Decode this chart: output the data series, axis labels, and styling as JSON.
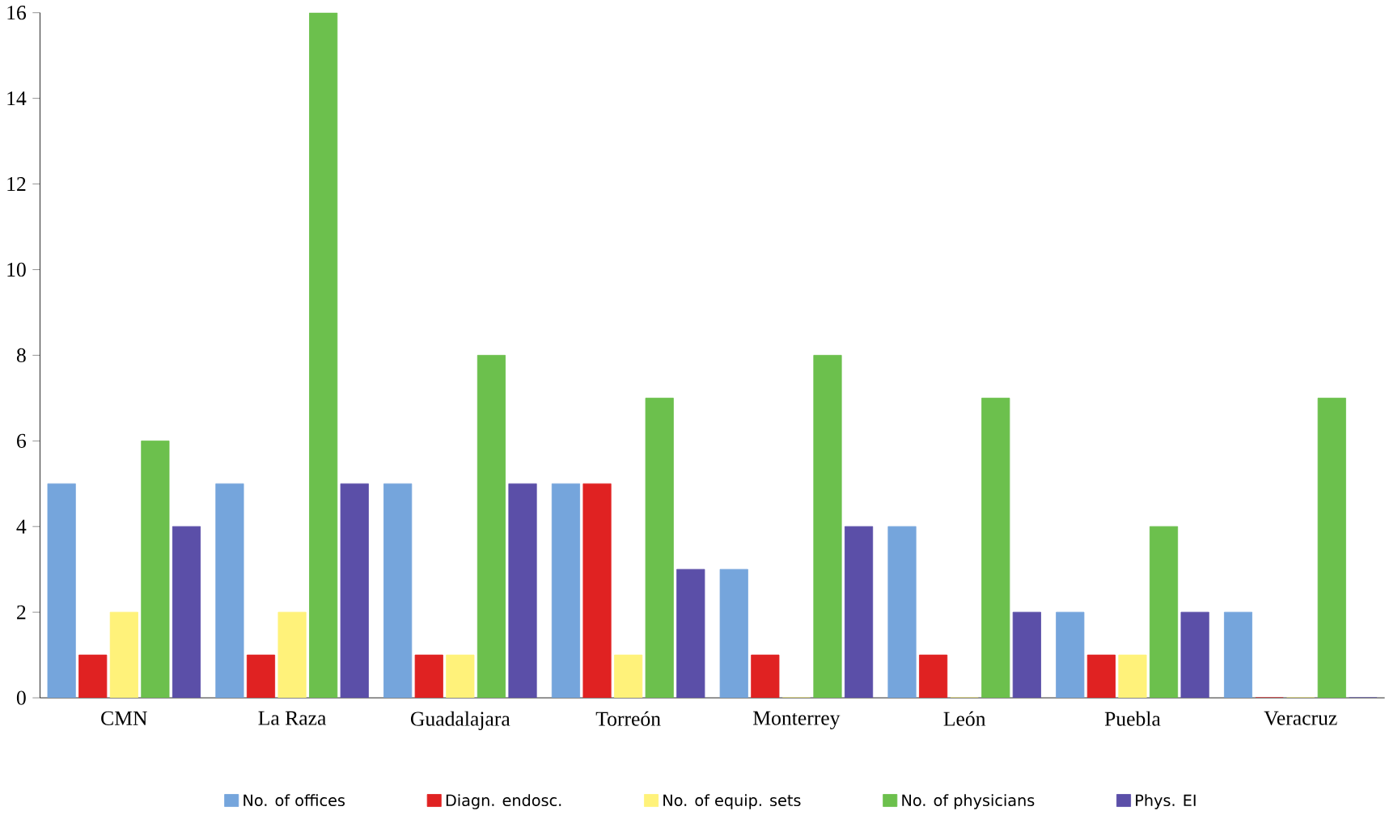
{
  "chart_data": {
    "type": "bar",
    "categories": [
      "CMN",
      "La Raza",
      "Guadalajara",
      "Torreón",
      "Monterrey",
      "León",
      "Puebla",
      "Veracruz"
    ],
    "series": [
      {
        "name": "No. of offices",
        "color": "#75a5dc",
        "values": [
          5,
          5,
          5,
          5,
          3,
          4,
          2,
          2
        ]
      },
      {
        "name": "Diagn. endosc.",
        "color": "#e02222",
        "values": [
          1,
          1,
          1,
          5,
          1,
          1,
          1,
          0
        ]
      },
      {
        "name": "No. of equip. sets",
        "color": "#fff27a",
        "values": [
          2,
          2,
          1,
          1,
          0,
          0,
          1,
          0
        ]
      },
      {
        "name": "No. of physicians",
        "color": "#6cc04d",
        "values": [
          6,
          16,
          8,
          7,
          8,
          7,
          4,
          7
        ]
      },
      {
        "name": "Phys. EI",
        "color": "#5b4fa8",
        "values": [
          4,
          5,
          5,
          3,
          4,
          2,
          2,
          0
        ]
      }
    ],
    "ylim": [
      0,
      16
    ],
    "yticks": [
      0,
      2,
      4,
      6,
      8,
      10,
      12,
      14,
      16
    ],
    "grid": false,
    "legend": "bottom"
  }
}
